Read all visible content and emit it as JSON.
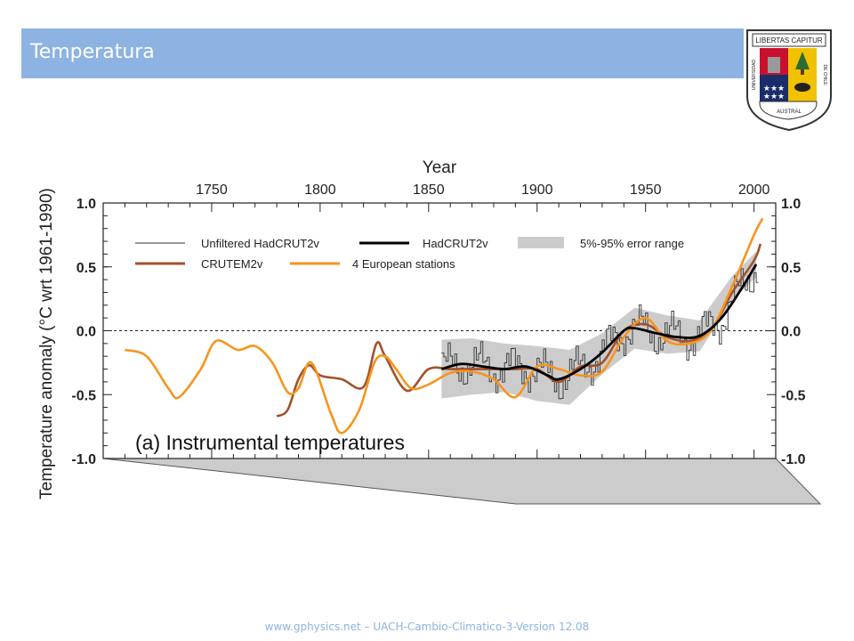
{
  "slide": {
    "title": "Temperatura",
    "footer": "www.gphysics.net – UACH-Cambio-Climatico-3-Version 12.08",
    "title_bar_color": "#8db3e2"
  },
  "seal": {
    "top_text": "LIBERTAS CAPITUR",
    "left_text": "UNIVERSIDAD",
    "bottom_text": "AUSTRAL",
    "right_text": "DE CHILE"
  },
  "chart_data": {
    "type": "line",
    "panel_label": "(a) Instrumental temperatures",
    "xlabel": "Year",
    "ylabel": "Temperature anomaly  (°C wrt 1961-1990)",
    "xlim": [
      1700,
      2010
    ],
    "ylim": [
      -1.0,
      1.0
    ],
    "x_ticks": [
      1750,
      1800,
      1850,
      1900,
      1950,
      2000
    ],
    "y_ticks": [
      -1.0,
      -0.5,
      0.0,
      0.5,
      1.0
    ],
    "y_tick_labels": [
      "-1.0",
      "-0.5",
      "0.0",
      "0.5",
      "1.0"
    ],
    "grid": false,
    "zero_line": "dotted",
    "legend_placement": "top-left",
    "legend": [
      {
        "name": "Unfiltered HadCRUT2v",
        "style": "thin-black"
      },
      {
        "name": "HadCRUT2v",
        "style": "thick-black"
      },
      {
        "name": "5%-95% error range",
        "style": "grey-band"
      },
      {
        "name": "CRUTEM2v",
        "style": "brown"
      },
      {
        "name": "4 European stations",
        "style": "orange"
      }
    ],
    "colors": {
      "unfiltered": "#333333",
      "hadcrut": "#000000",
      "band": "#cccccc",
      "crutem": "#a0522d",
      "european": "#f7941d"
    },
    "series": [
      {
        "name": "4 European stations",
        "x": [
          1710,
          1720,
          1730,
          1735,
          1745,
          1752,
          1762,
          1770,
          1778,
          1785,
          1790,
          1796,
          1805,
          1810,
          1818,
          1825,
          1830,
          1835,
          1842,
          1850,
          1860,
          1870,
          1880,
          1890,
          1900,
          1910,
          1920,
          1930,
          1940,
          1950,
          1960,
          1970,
          1980,
          1990,
          2000,
          2004
        ],
        "values": [
          -0.15,
          -0.2,
          -0.45,
          -0.52,
          -0.3,
          -0.08,
          -0.15,
          -0.12,
          -0.25,
          -0.48,
          -0.45,
          -0.25,
          -0.65,
          -0.8,
          -0.62,
          -0.25,
          -0.2,
          -0.3,
          -0.45,
          -0.42,
          -0.33,
          -0.32,
          -0.38,
          -0.52,
          -0.28,
          -0.3,
          -0.35,
          -0.32,
          -0.05,
          0.1,
          -0.08,
          -0.1,
          0.0,
          0.35,
          0.75,
          0.88
        ]
      },
      {
        "name": "CRUTEM2v",
        "x": [
          1780,
          1785,
          1790,
          1795,
          1800,
          1810,
          1820,
          1826,
          1830,
          1840,
          1850,
          1860,
          1870,
          1880,
          1890,
          1900,
          1910,
          1920,
          1930,
          1940,
          1950,
          1960,
          1970,
          1980,
          1990,
          2000,
          2003
        ],
        "values": [
          -0.67,
          -0.62,
          -0.38,
          -0.27,
          -0.35,
          -0.38,
          -0.44,
          -0.1,
          -0.2,
          -0.47,
          -0.3,
          -0.3,
          -0.3,
          -0.3,
          -0.3,
          -0.3,
          -0.4,
          -0.28,
          -0.25,
          0.0,
          0.05,
          -0.05,
          -0.08,
          0.0,
          0.3,
          0.55,
          0.68
        ]
      },
      {
        "name": "HadCRUT2v",
        "x": [
          1856,
          1865,
          1875,
          1885,
          1895,
          1905,
          1910,
          1920,
          1930,
          1940,
          1945,
          1955,
          1965,
          1975,
          1985,
          1995,
          2001
        ],
        "values": [
          -0.3,
          -0.26,
          -0.28,
          -0.3,
          -0.28,
          -0.35,
          -0.38,
          -0.3,
          -0.17,
          0.0,
          0.02,
          -0.02,
          -0.05,
          -0.04,
          0.1,
          0.35,
          0.52
        ]
      },
      {
        "name": "5%-95% error range",
        "x": [
          1856,
          1870,
          1885,
          1900,
          1915,
          1930,
          1945,
          1960,
          1975,
          1990,
          2001
        ],
        "upper": [
          -0.07,
          -0.06,
          -0.1,
          -0.12,
          -0.15,
          -0.02,
          0.18,
          0.12,
          0.08,
          0.43,
          0.62
        ],
        "lower": [
          -0.53,
          -0.5,
          -0.48,
          -0.55,
          -0.58,
          -0.34,
          -0.14,
          -0.18,
          -0.16,
          0.24,
          0.42
        ]
      }
    ]
  }
}
